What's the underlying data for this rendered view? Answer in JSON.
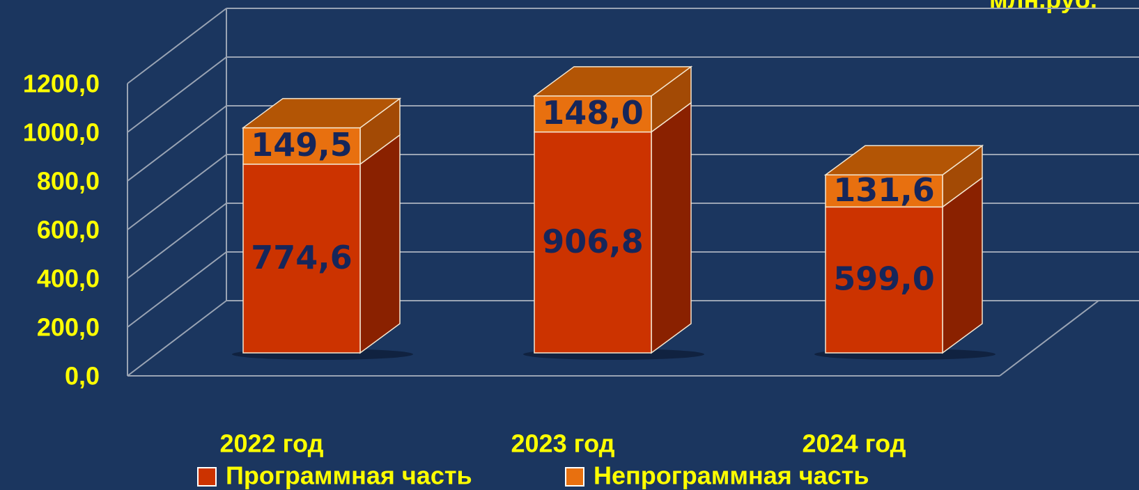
{
  "chart_data": {
    "type": "bar3d_stacked",
    "unit_label": "млн.руб.",
    "categories": [
      "2022 год",
      "2023 год",
      "2024 год"
    ],
    "series": [
      {
        "name": "Программная часть",
        "color": "#cc3300",
        "values": [
          774.6,
          906.8,
          599.0
        ],
        "value_labels": [
          "774,6",
          "906,8",
          "599,0"
        ]
      },
      {
        "name": "Непрограммная часть",
        "color": "#e8700f",
        "values": [
          149.5,
          148.0,
          131.6
        ],
        "value_labels": [
          "149,5",
          "148,0",
          "131,6"
        ]
      }
    ],
    "ylim": [
      0,
      1200
    ],
    "yticks": [
      {
        "value": 0,
        "label": "0,0"
      },
      {
        "value": 200,
        "label": "200,0"
      },
      {
        "value": 400,
        "label": "400,0"
      },
      {
        "value": 600,
        "label": "600,0"
      },
      {
        "value": 800,
        "label": "800,0"
      },
      {
        "value": 1000,
        "label": "1000,0"
      },
      {
        "value": 1200,
        "label": "1200,0"
      }
    ],
    "grid": true
  }
}
